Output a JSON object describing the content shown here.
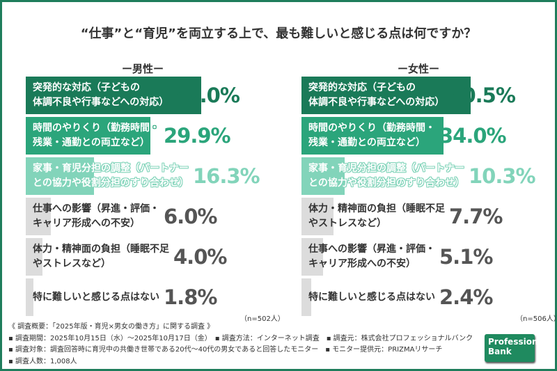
{
  "title": "“仕事”と“育児”を両立する上で、最も難しいと感じる点は何ですか？",
  "colors": {
    "dark": "#1a7a58",
    "mid": "#2ba57b",
    "light": "#82d4ba",
    "gray": "#dcdcdc",
    "frame": "#1f7d5c"
  },
  "chart_data": [
    {
      "type": "bar",
      "title": "ー男性ー",
      "note": "（n=502人）",
      "unit": "%",
      "categories": [
        "突発的な対応（子どもの\n体調不良や行事などへの対応）",
        "時間のやりくり（勤務時間・\n残業・通勤との両立など）",
        "家事・育児分担の調整（パートナー\nとの協力や役割分担のすり合わせ）",
        "仕事への影響（昇進・評価・\nキャリア形成への不安）",
        "体力・精神面の負担（睡眠不足\nやストレスなど）",
        "特に難しいと感じる点はない"
      ],
      "values": [
        42.0,
        29.9,
        16.3,
        6.0,
        4.0,
        1.8
      ],
      "labels": [
        "42.0%",
        "29.9%",
        "16.3%",
        "6.0%",
        "4.0%",
        "1.8%"
      ]
    },
    {
      "type": "bar",
      "title": "ー女性ー",
      "note": "（n=506人）",
      "unit": "%",
      "categories": [
        "突発的な対応（子どもの\n体調不良や行事などへの対応）",
        "時間のやりくり（勤務時間・\n残業・通勤との両立など）",
        "家事・育児分担の調整（パートナー\nとの協力や役割分担のすり合わせ）",
        "体力・精神面の負担（睡眠不足\nやストレスなど）",
        "仕事への影響（昇進・評価・\nキャリア形成への不安）",
        "特に難しいと感じる点はない"
      ],
      "values": [
        40.5,
        34.0,
        10.3,
        7.7,
        5.1,
        2.4
      ],
      "labels": [
        "40.5%",
        "34.0%",
        "10.3%",
        "7.7%",
        "5.1%",
        "2.4%"
      ]
    }
  ],
  "footer": {
    "lines": [
      "《 調査概要：「2025年版・育児×男女の働き方」に関する調査 》",
      "▪ 調査期間：2025年10月15日（水）～2025年10月17日（金）　▪ 調査方法：インターネット調査　▪ 調査元：株式会社プロフェッショナルバンク",
      "▪ 調査対象：調査回答時に育児中の共働き世帯である20代～40代の男女であると回答したモニター　▪ モニター提供元：PRIZMAリサーチ",
      "▪ 調査人数：1,008人"
    ],
    "logo": "Professional Bank"
  }
}
